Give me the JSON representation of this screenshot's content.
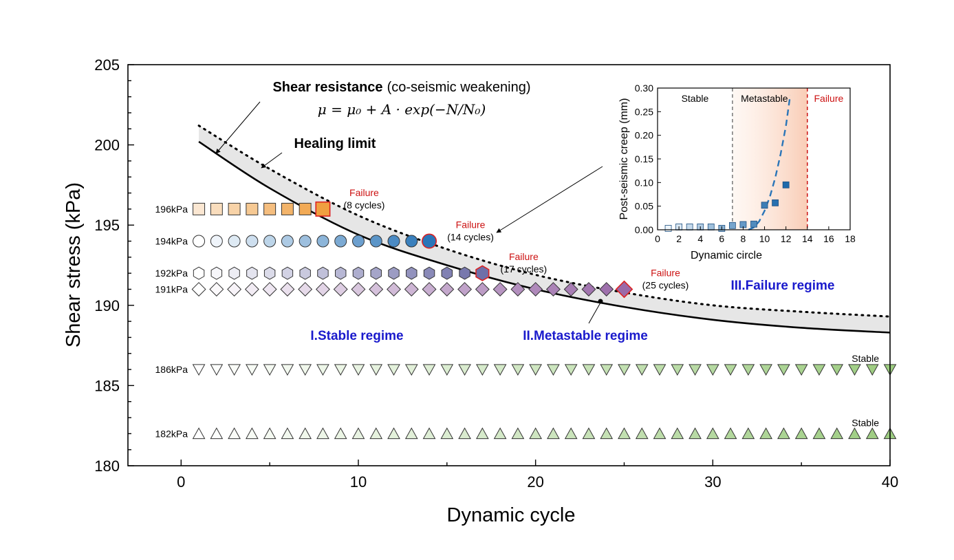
{
  "chart_data": {
    "type": "scatter",
    "xlabel": "Dynamic cycle",
    "ylabel": "Shear stress (kPa)",
    "xlim": [
      -3,
      40
    ],
    "ylim": [
      180,
      205
    ],
    "xticks": [
      "0",
      "10",
      "20",
      "30",
      "40"
    ],
    "yticks": [
      "180",
      "185",
      "190",
      "195",
      "200",
      "205"
    ],
    "series": [
      {
        "name": "196kPa",
        "level": 196,
        "marker": "square",
        "color_start": "#fbe7d2",
        "color_end": "#f0a040",
        "cycles": [
          1,
          8
        ],
        "failure": true,
        "failure_title": "Failure",
        "failure_cycles": "(8 cycles)"
      },
      {
        "name": "194kPa",
        "level": 194,
        "marker": "circle",
        "color_start": "#ffffff",
        "color_end": "#2a75b8",
        "cycles": [
          1,
          14
        ],
        "failure": true,
        "failure_title": "Failure",
        "failure_cycles": "(14 cycles)"
      },
      {
        "name": "192kPa",
        "level": 192,
        "marker": "hexagon",
        "color_start": "#ffffff",
        "color_end": "#6f6fa8",
        "cycles": [
          1,
          17
        ],
        "failure": true,
        "failure_title": "Failure",
        "failure_cycles": "(17 cycles)"
      },
      {
        "name": "191kPa",
        "level": 191,
        "marker": "diamond",
        "color_start": "#ffffff",
        "color_end": "#9a6aa8",
        "cycles": [
          1,
          25
        ],
        "failure": true,
        "failure_title": "Failure",
        "failure_cycles": "(25 cycles)"
      },
      {
        "name": "186kPa",
        "level": 186,
        "marker": "triangle-down",
        "color_start": "#ffffff",
        "color_end": "#9ccc80",
        "cycles": [
          1,
          40
        ],
        "failure": false,
        "status": "Stable"
      },
      {
        "name": "182kPa",
        "level": 182,
        "marker": "triangle-up",
        "color_start": "#ffffff",
        "color_end": "#9ccc80",
        "cycles": [
          1,
          40
        ],
        "failure": false,
        "status": "Stable"
      }
    ],
    "curves": {
      "shear_resistance": {
        "x": [
          1,
          5,
          10,
          15,
          20,
          25,
          30,
          35,
          40
        ],
        "y": [
          200.2,
          197.3,
          194.4,
          192.5,
          191.0,
          189.9,
          189.1,
          188.6,
          188.3
        ]
      },
      "healing_limit": {
        "x": [
          1,
          5,
          10,
          15,
          20,
          25,
          30,
          35,
          40
        ],
        "y": [
          201.2,
          198.5,
          195.6,
          193.5,
          191.9,
          190.8,
          190.0,
          189.6,
          189.3
        ]
      }
    },
    "annotations": {
      "shear_resistance_bold": "Shear resistance",
      "shear_resistance_rest": "(co-seismic weakening)",
      "formula": "μ = μ₀ + A · exp(−N/N₀)",
      "healing_limit": "Healing limit",
      "regime_1": "I.Stable regime",
      "regime_2": "II.Metastable regime",
      "regime_3": "III.Failure regime"
    },
    "inset": {
      "type": "scatter",
      "xlabel": "Dynamic circle",
      "ylabel": "Post-seismic creep (mm)",
      "xlim": [
        0,
        18
      ],
      "ylim": [
        0,
        0.3
      ],
      "xticks": [
        "0",
        "2",
        "4",
        "6",
        "8",
        "10",
        "12",
        "14",
        "16",
        "18"
      ],
      "yticks": [
        "0.00",
        "0.05",
        "0.10",
        "0.15",
        "0.20",
        "0.25",
        "0.30"
      ],
      "zones": [
        "Stable",
        "Metastable",
        "Failure"
      ],
      "boundaries": [
        7,
        14
      ],
      "x": [
        1,
        2,
        3,
        4,
        5,
        6,
        7,
        8,
        9,
        10,
        11,
        12
      ],
      "y": [
        0.003,
        0.006,
        0.006,
        0.006,
        0.006,
        0.003,
        0.009,
        0.011,
        0.012,
        0.052,
        0.057,
        0.095
      ],
      "fit_x": [
        8.5,
        9,
        9.5,
        10,
        10.5,
        11,
        11.5,
        12,
        12.4
      ],
      "fit_y": [
        0.0,
        0.005,
        0.018,
        0.04,
        0.07,
        0.11,
        0.16,
        0.22,
        0.285
      ]
    }
  }
}
